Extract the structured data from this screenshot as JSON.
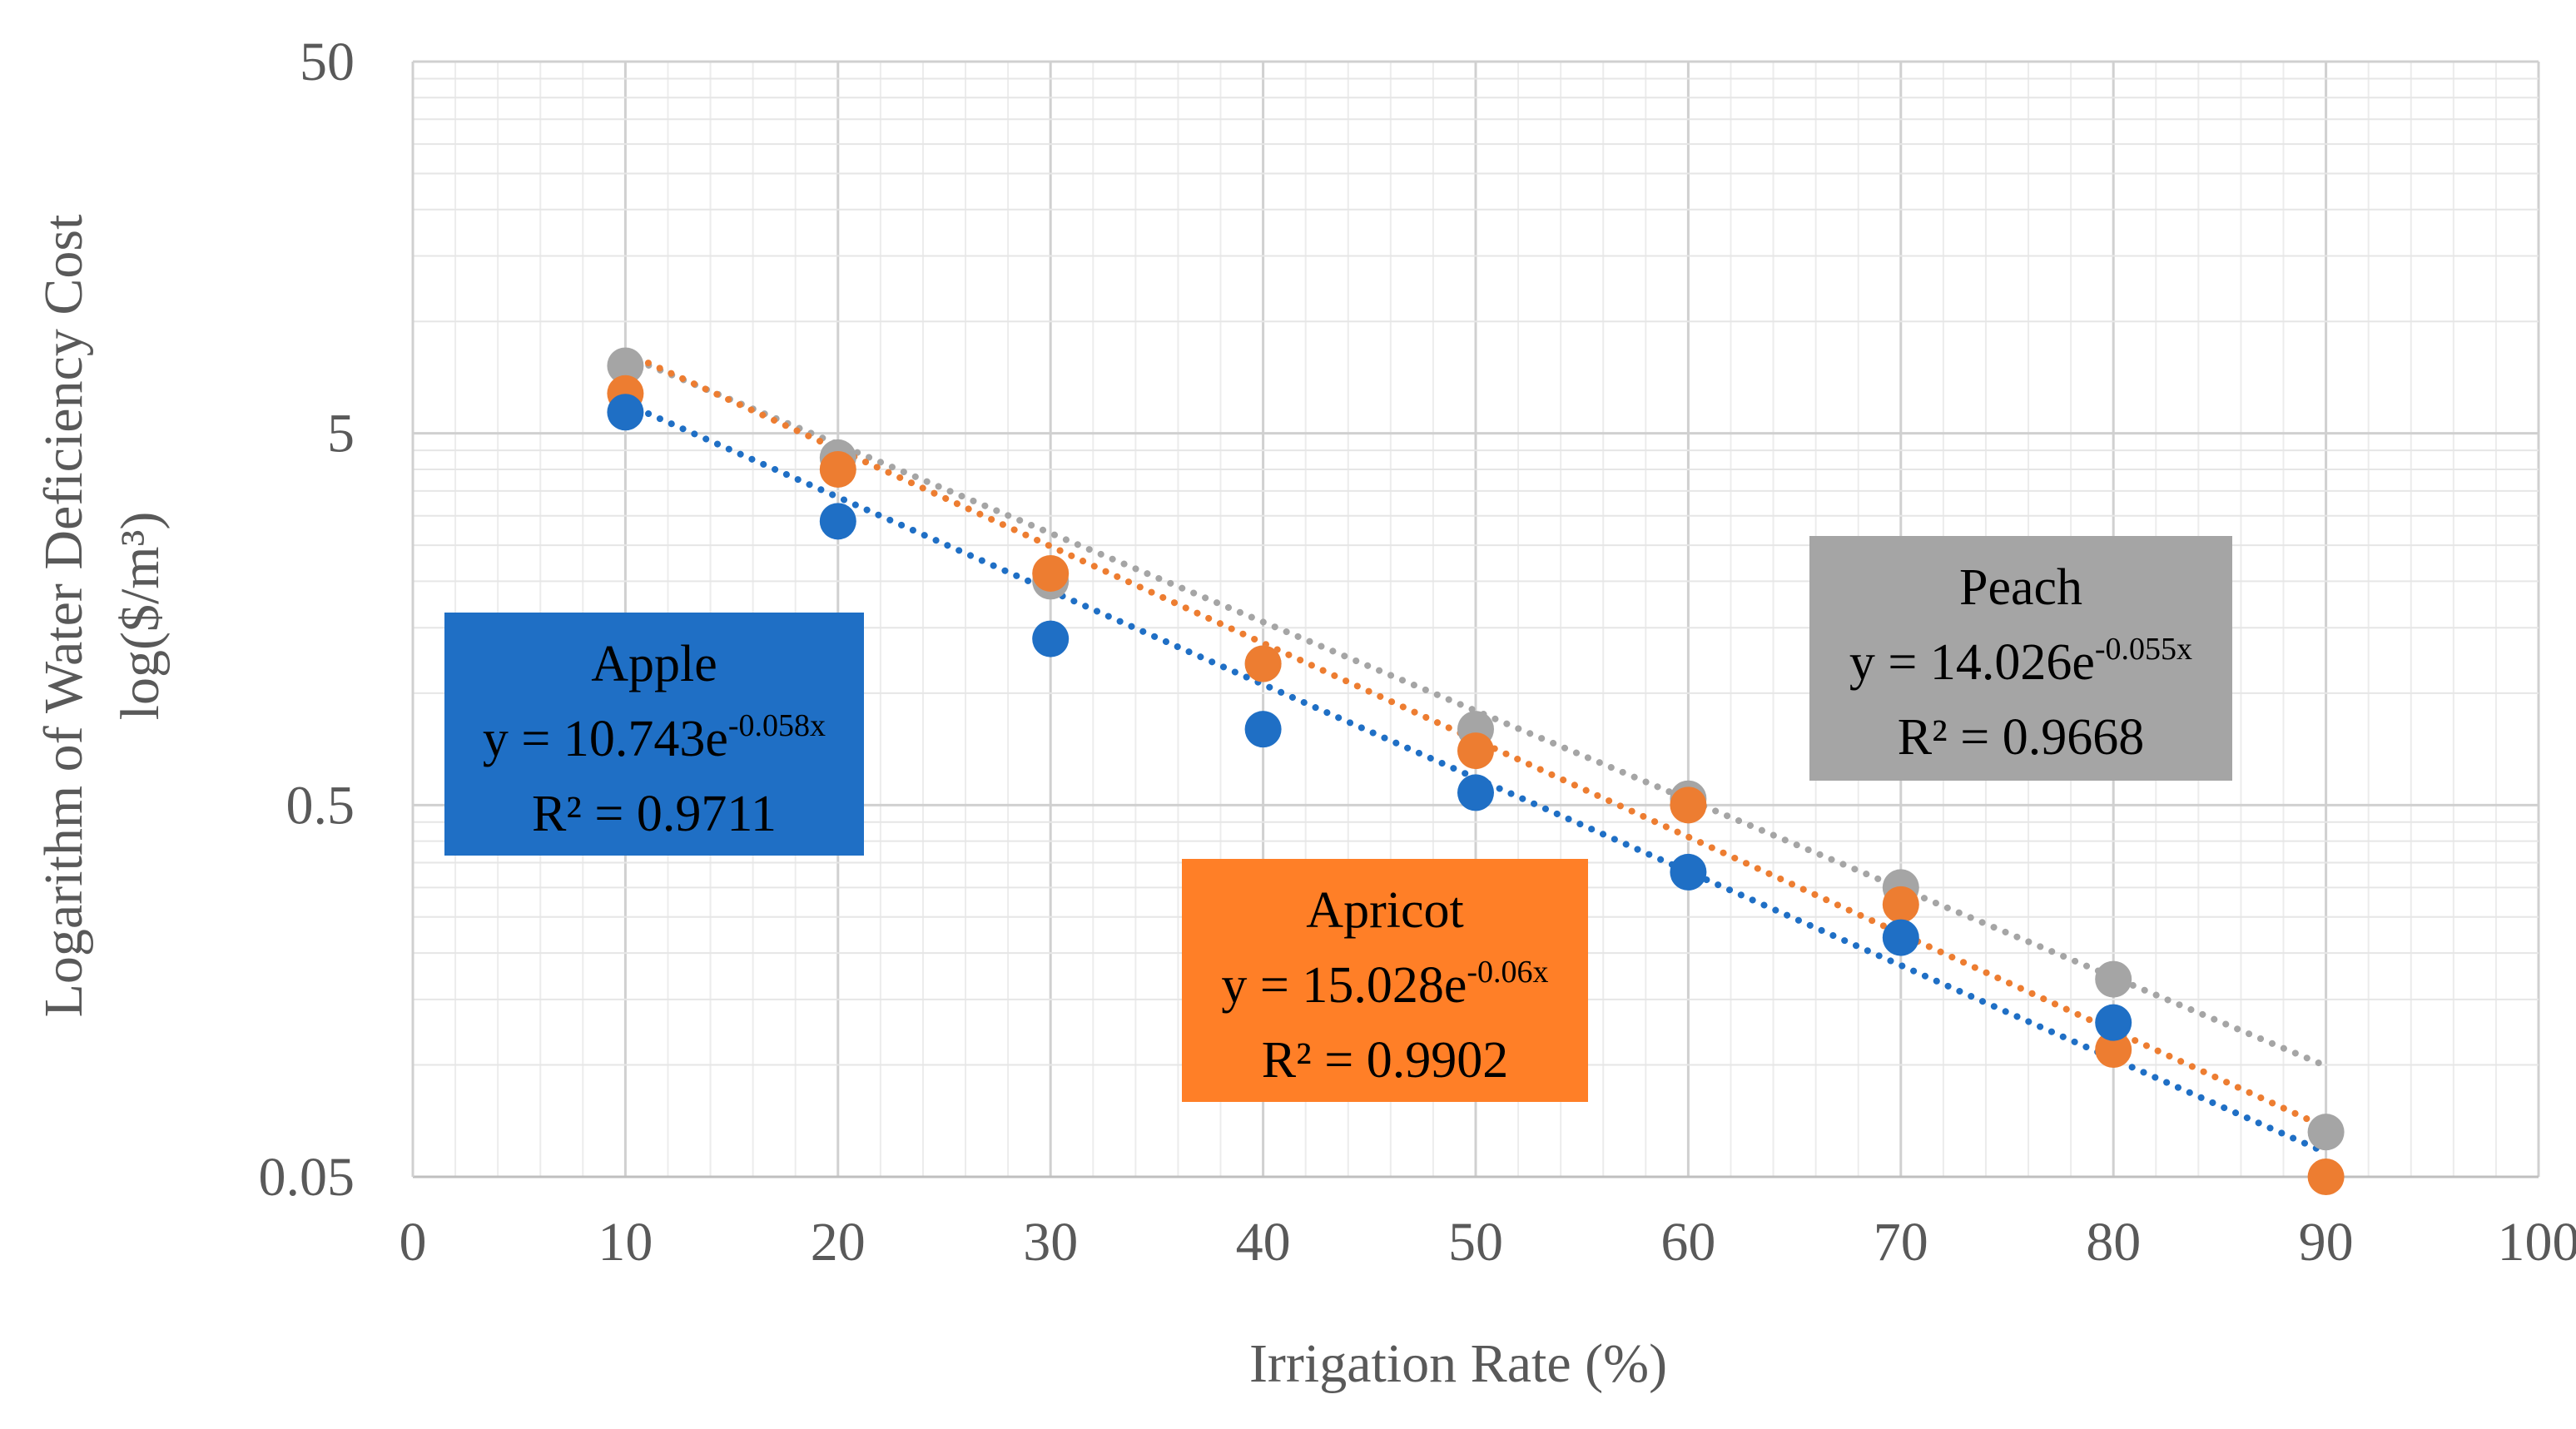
{
  "chart_data": {
    "type": "scatter",
    "title": "",
    "xlabel": "Irrigation Rate (%)",
    "ylabel_line1": "Logarithm of Water Deficiency Cost",
    "ylabel_line2": "log($/m³)",
    "xlim": [
      0,
      100
    ],
    "ylim": [
      0.05,
      50
    ],
    "yscale": "log",
    "x_ticks": [
      "0",
      "10",
      "20",
      "30",
      "40",
      "50",
      "60",
      "70",
      "80",
      "90",
      "100"
    ],
    "y_ticks": [
      "0.05",
      "0.5",
      "5",
      "50"
    ],
    "x": [
      10,
      20,
      30,
      40,
      50,
      60,
      70,
      80,
      90
    ],
    "series": [
      {
        "name": "Peach",
        "color": "#A5A5A5",
        "values": [
          7.6,
          4.3,
          2.0,
          1.2,
          0.8,
          0.52,
          0.3,
          0.17,
          0.066
        ],
        "trend": {
          "a": 14.026,
          "b": -0.055
        },
        "label": {
          "name": "Peach",
          "equation_base": "y = 14.026e",
          "equation_exp": "-0.055x",
          "r2": "R² = 0.9668"
        }
      },
      {
        "name": "Apricot",
        "color": "#ED7D31",
        "values": [
          6.4,
          4.0,
          2.1,
          1.2,
          0.7,
          0.5,
          0.27,
          0.11,
          0.05
        ],
        "trend": {
          "a": 15.028,
          "b": -0.06
        },
        "label": {
          "name": "Apricot",
          "equation_base": "y = 15.028e",
          "equation_exp": "-0.06x",
          "r2": "R² = 0.9902"
        }
      },
      {
        "name": "Apple",
        "color": "#1F6FC5",
        "values": [
          5.7,
          2.9,
          1.4,
          0.8,
          0.54,
          0.33,
          0.22,
          0.13,
          null
        ],
        "trend": {
          "a": 10.743,
          "b": -0.058
        },
        "label": {
          "name": "Apple",
          "equation_base": "y = 10.743e",
          "equation_exp": "-0.058x",
          "r2": "R² = 0.9711"
        }
      }
    ]
  }
}
